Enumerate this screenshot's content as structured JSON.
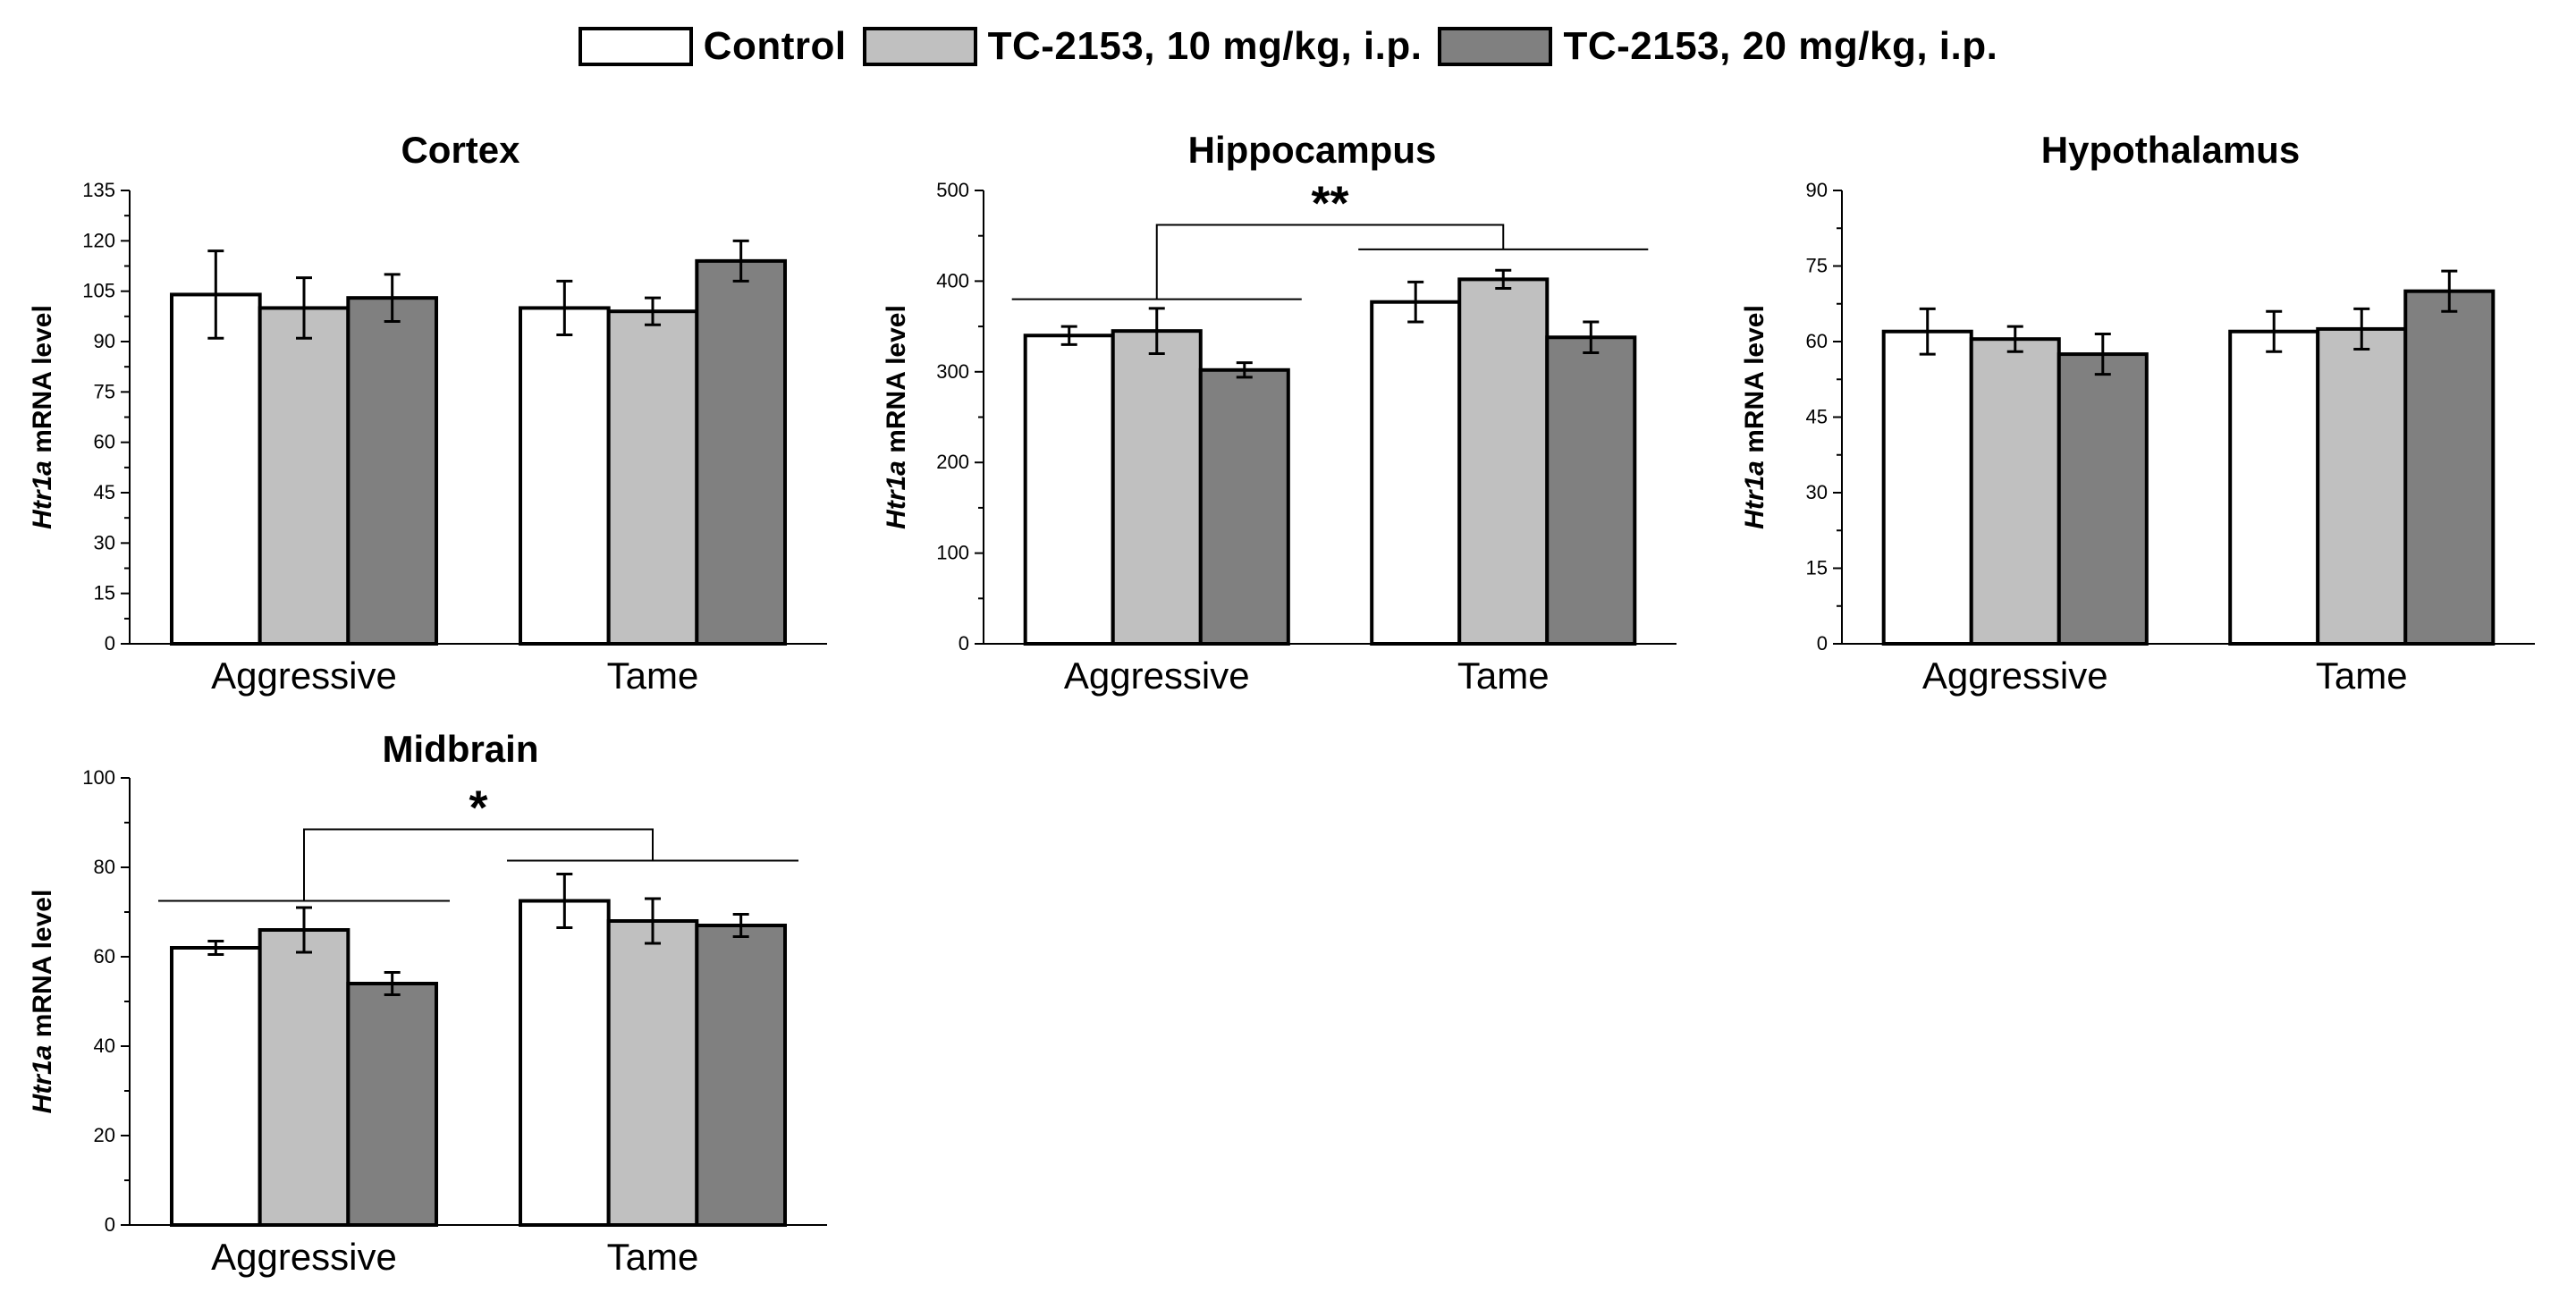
{
  "legend": {
    "items": [
      {
        "label": "Control",
        "color": "#ffffff"
      },
      {
        "label": "TC-2153, 10 mg/kg, i.p.",
        "color": "#c0c0c0"
      },
      {
        "label": "TC-2153, 20 mg/kg, i.p.",
        "color": "#808080"
      }
    ]
  },
  "chart_data": [
    {
      "type": "bar",
      "title": "Cortex",
      "ylabel_gene": "Htr1a",
      "ylabel_rest": " mRNA level",
      "categories": [
        "Aggressive",
        "Tame"
      ],
      "ylim": [
        0,
        135
      ],
      "yticks": [
        0,
        15,
        30,
        45,
        60,
        75,
        90,
        105,
        120,
        135
      ],
      "series": [
        {
          "name": "Control",
          "values": [
            104,
            100
          ],
          "errors": [
            13,
            8
          ]
        },
        {
          "name": "TC-2153, 10 mg/kg, i.p.",
          "values": [
            100,
            99
          ],
          "errors": [
            9,
            4
          ]
        },
        {
          "name": "TC-2153, 20 mg/kg, i.p.",
          "values": [
            103,
            114
          ],
          "errors": [
            7,
            6
          ]
        }
      ],
      "significance": null
    },
    {
      "type": "bar",
      "title": "Hippocampus",
      "ylabel_gene": "Htr1a",
      "ylabel_rest": " mRNA level",
      "categories": [
        "Aggressive",
        "Tame"
      ],
      "ylim": [
        0,
        500
      ],
      "yticks": [
        0,
        100,
        200,
        300,
        400,
        500
      ],
      "series": [
        {
          "name": "Control",
          "values": [
            340,
            377
          ],
          "errors": [
            10,
            22
          ]
        },
        {
          "name": "TC-2153, 10 mg/kg, i.p.",
          "values": [
            345,
            402
          ],
          "errors": [
            25,
            10
          ]
        },
        {
          "name": "TC-2153, 20 mg/kg, i.p.",
          "values": [
            302,
            338
          ],
          "errors": [
            8,
            17
          ]
        }
      ],
      "significance": {
        "label": "**",
        "groupline_values": [
          380,
          435
        ],
        "bracket_top": 462
      }
    },
    {
      "type": "bar",
      "title": "Hypothalamus",
      "ylabel_gene": "Htr1a",
      "ylabel_rest": " mRNA level",
      "categories": [
        "Aggressive",
        "Tame"
      ],
      "ylim": [
        0,
        90
      ],
      "yticks": [
        0,
        15,
        30,
        45,
        60,
        75,
        90
      ],
      "series": [
        {
          "name": "Control",
          "values": [
            62,
            62
          ],
          "errors": [
            4.5,
            4
          ]
        },
        {
          "name": "TC-2153, 10 mg/kg, i.p.",
          "values": [
            60.5,
            62.5
          ],
          "errors": [
            2.5,
            4
          ]
        },
        {
          "name": "TC-2153, 20 mg/kg, i.p.",
          "values": [
            57.5,
            70
          ],
          "errors": [
            4,
            4
          ]
        }
      ],
      "significance": null
    },
    {
      "type": "bar",
      "title": "Midbrain",
      "ylabel_gene": "Htr1a",
      "ylabel_rest": " mRNA level",
      "categories": [
        "Aggressive",
        "Tame"
      ],
      "ylim": [
        0,
        100
      ],
      "yticks": [
        0,
        20,
        40,
        60,
        80,
        100
      ],
      "series": [
        {
          "name": "Control",
          "values": [
            62,
            72.5
          ],
          "errors": [
            1.5,
            6
          ]
        },
        {
          "name": "TC-2153, 10 mg/kg, i.p.",
          "values": [
            66,
            68
          ],
          "errors": [
            5,
            5
          ]
        },
        {
          "name": "TC-2153, 20 mg/kg, i.p.",
          "values": [
            54,
            67
          ],
          "errors": [
            2.5,
            2.5
          ]
        }
      ],
      "significance": {
        "label": "*",
        "groupline_values": [
          72.5,
          81.5
        ],
        "bracket_top": 88.5
      }
    }
  ]
}
